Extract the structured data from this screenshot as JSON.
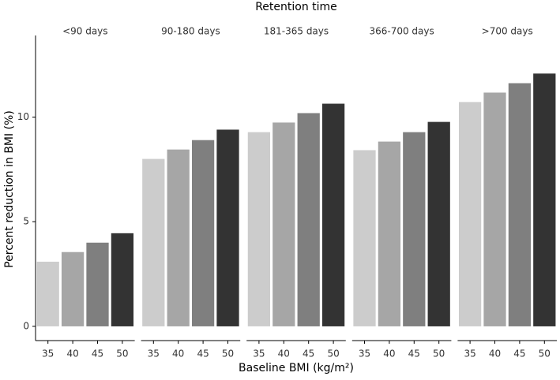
{
  "chart_data": {
    "type": "bar",
    "title": "Retention time",
    "x_label": "Baseline BMI (kg/m²)",
    "y_label": "Percent reduction in BMI (%)",
    "categories": [
      "35",
      "40",
      "45",
      "50"
    ],
    "colors": [
      "#cccccc",
      "#a6a6a6",
      "#7f7f7f",
      "#333333"
    ],
    "facets": [
      {
        "label": "<90 days",
        "values": [
          3.09,
          3.55,
          4.0,
          4.45
        ]
      },
      {
        "label": "90-180 days",
        "values": [
          8.0,
          8.45,
          8.9,
          9.4
        ]
      },
      {
        "label": "181-365 days",
        "values": [
          9.28,
          9.74,
          10.19,
          10.64
        ]
      },
      {
        "label": "366-700 days",
        "values": [
          8.42,
          8.83,
          9.28,
          9.77
        ]
      },
      {
        "label": ">700 days",
        "values": [
          10.72,
          11.17,
          11.62,
          12.08
        ]
      }
    ],
    "ylim": [
      -0.68,
      13.9
    ],
    "yticks": [
      0,
      5,
      10
    ]
  }
}
